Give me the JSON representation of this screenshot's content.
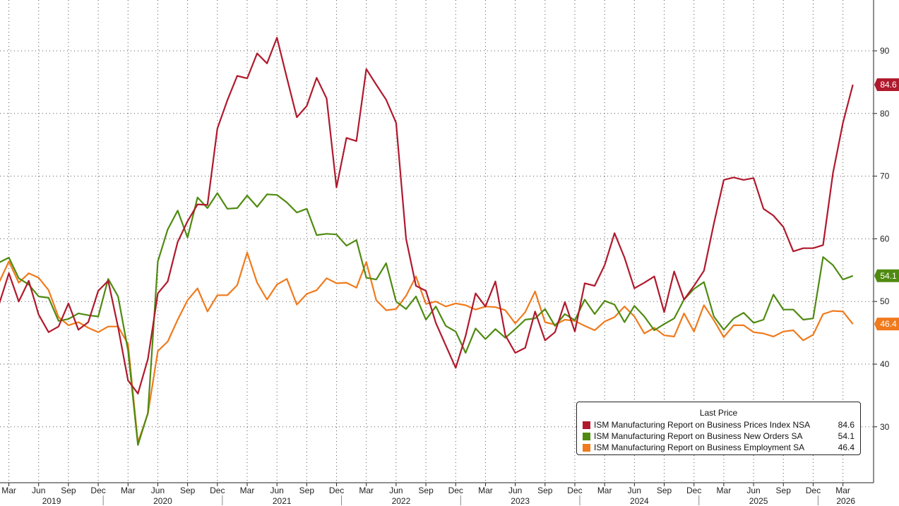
{
  "chart_data": {
    "type": "line",
    "x_start": "2019-02",
    "ylim": [
      22,
      100
    ],
    "y_ticks": [
      30,
      40,
      50,
      60,
      70,
      80,
      90
    ],
    "month_ticks": [
      "Mar",
      "Jun",
      "Sep",
      "Dec",
      "Mar",
      "Jun",
      "Sep",
      "Dec",
      "Mar",
      "Jun",
      "Sep",
      "Dec",
      "Mar",
      "Jun",
      "Sep",
      "Dec",
      "Mar",
      "Jun",
      "Sep",
      "Dec",
      "Mar",
      "Jun",
      "Sep",
      "Dec",
      "Mar",
      "Jun",
      "Sep",
      "Dec",
      "Mar"
    ],
    "years": [
      "2019",
      "2020",
      "2021",
      "2022",
      "2023",
      "2024",
      "2025",
      "2026"
    ],
    "grid": true,
    "legend": {
      "title": "Last Price",
      "position": "bottom-right",
      "entries": [
        {
          "label": "ISM Manufacturing Report on Business Prices Index NSA",
          "value": "84.6"
        },
        {
          "label": "ISM Manufacturing Report on Business New Orders SA",
          "value": "54.1"
        },
        {
          "label": "ISM Manufacturing Report on Business Employment SA",
          "value": "46.4"
        }
      ]
    },
    "series": [
      {
        "name": "ISM Manufacturing Report on Business Prices Index NSA",
        "color": "#b0192d",
        "last": "84.6",
        "values": [
          49.5,
          54.5,
          50.0,
          53.3,
          47.9,
          45.1,
          46.0,
          49.7,
          45.5,
          46.7,
          51.7,
          53.3,
          45.9,
          37.4,
          35.3,
          40.8,
          51.3,
          53.2,
          59.5,
          62.8,
          65.5,
          65.4,
          77.6,
          82.1,
          86.0,
          85.6,
          89.6,
          88.0,
          92.1,
          85.7,
          79.4,
          81.2,
          85.7,
          82.4,
          68.2,
          76.1,
          75.6,
          87.1,
          84.6,
          82.2,
          78.5,
          60.0,
          52.5,
          51.7,
          46.6,
          43.0,
          39.4,
          44.5,
          51.3,
          49.2,
          53.2,
          44.6,
          41.8,
          42.6,
          48.4,
          43.8,
          45.1,
          49.9,
          45.2,
          52.9,
          52.5,
          55.8,
          60.9,
          57.0,
          52.1,
          53.0,
          54.0,
          48.3,
          54.8,
          50.3,
          52.5,
          54.9,
          62.4,
          69.4,
          69.8,
          69.4,
          69.7,
          64.8,
          63.7,
          61.9,
          58.0,
          58.5,
          58.5,
          59.0,
          70.5,
          78.5,
          84.6
        ]
      },
      {
        "name": "ISM Manufacturing Report on Business New Orders SA",
        "color": "#4f8a10",
        "last": "54.1",
        "values": [
          56.2,
          57.0,
          53.7,
          52.7,
          50.8,
          50.6,
          46.9,
          47.2,
          48.1,
          47.8,
          47.6,
          53.6,
          50.8,
          42.2,
          27.1,
          32.2,
          56.4,
          61.5,
          64.5,
          60.2,
          66.6,
          64.9,
          67.3,
          64.8,
          64.9,
          66.9,
          65.1,
          67.1,
          67.0,
          65.8,
          64.2,
          64.8,
          60.6,
          60.8,
          60.7,
          58.9,
          59.8,
          53.8,
          53.5,
          56.1,
          50.0,
          48.8,
          50.8,
          47.1,
          49.2,
          46.1,
          45.2,
          41.8,
          45.7,
          44.0,
          45.6,
          44.2,
          45.6,
          47.1,
          47.3,
          48.8,
          46.1,
          48.0,
          47.0,
          50.3,
          48.0,
          50.1,
          49.5,
          46.7,
          49.3,
          47.6,
          45.4,
          46.4,
          47.3,
          50.3,
          52.0,
          53.1,
          47.6,
          45.5,
          47.3,
          48.2,
          46.6,
          47.1,
          51.1,
          48.7,
          48.7,
          47.1,
          47.3,
          57.1,
          55.8,
          53.5,
          54.1
        ]
      },
      {
        "name": "ISM Manufacturing Report on Business Employment SA",
        "color": "#f07a1c",
        "last": "46.4",
        "values": [
          53.0,
          56.4,
          53.0,
          54.5,
          53.8,
          51.8,
          47.5,
          46.2,
          46.7,
          45.8,
          45.1,
          46.0,
          46.0,
          43.2,
          27.5,
          32.1,
          42.1,
          43.6,
          47.1,
          50.2,
          52.1,
          48.4,
          51.0,
          51.0,
          52.6,
          57.8,
          53.0,
          50.3,
          52.7,
          53.6,
          49.5,
          51.2,
          51.8,
          53.7,
          52.9,
          53.0,
          52.2,
          56.3,
          50.2,
          48.6,
          48.8,
          50.9,
          54.0,
          49.6,
          50.0,
          49.2,
          49.7,
          49.4,
          48.7,
          49.2,
          49.1,
          48.6,
          46.5,
          48.3,
          51.6,
          46.7,
          46.3,
          47.1,
          46.9,
          46.1,
          45.4,
          46.8,
          47.5,
          49.2,
          47.6,
          44.9,
          45.8,
          44.6,
          44.4,
          48.1,
          45.2,
          49.4,
          47.0,
          44.3,
          46.2,
          46.2,
          45.1,
          44.9,
          44.4,
          45.2,
          45.4,
          43.8,
          44.7,
          48.0,
          48.5,
          48.4,
          46.4
        ]
      }
    ]
  }
}
